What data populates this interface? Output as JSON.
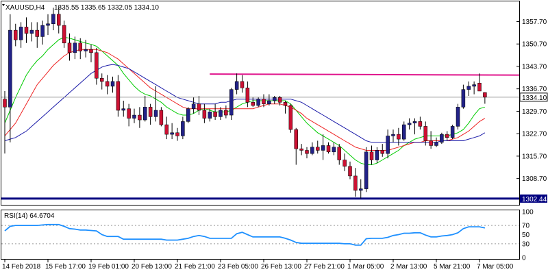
{
  "header": {
    "symbol": "XAUUSD,H4",
    "ohlc": "1335.55 1335.65 1332.05 1334.10"
  },
  "chart_data": [
    {
      "type": "candlestick",
      "title": "XAUUSD,H4",
      "ylim": [
        1300.5,
        1364.0
      ],
      "y_ticks": [
        "1357.70",
        "1350.70",
        "1343.70",
        "1336.70",
        "1329.70",
        "1322.70",
        "1315.70",
        "1308.70"
      ],
      "y_tick_values": [
        1357.7,
        1350.7,
        1343.7,
        1336.7,
        1329.7,
        1322.7,
        1315.7,
        1308.7
      ],
      "x_ticks": [
        "14 Feb 2018",
        "15 Feb 17:00",
        "19 Feb 01:00",
        "20 Feb 13:00",
        "21 Feb 21:00",
        "23 Feb 05:00",
        "26 Feb 13:00",
        "27 Feb 21:00",
        "1 Mar 05:00",
        "2 Mar 13:00",
        "5 Mar 21:00",
        "7 Mar 05:00"
      ],
      "x_tick_positions": [
        0,
        8,
        16,
        24,
        32,
        40,
        48,
        56,
        64,
        72,
        80,
        88
      ],
      "current_price": "1334.10",
      "current_price_value": 1334.1,
      "support_label": "1302.44",
      "support_value": 1302.44,
      "resistance": {
        "from_index": 38,
        "to_index": 91,
        "values": [
          1341.3,
          1341.0
        ]
      },
      "candles": [
        [
          1333.5,
          1336.0,
          1316.5,
          1331.0
        ],
        [
          1331.0,
          1360.0,
          1320.0,
          1355.0
        ],
        [
          1355.0,
          1357.0,
          1350.0,
          1352.0
        ],
        [
          1352.0,
          1357.5,
          1349.5,
          1356.0
        ],
        [
          1356.0,
          1359.0,
          1351.0,
          1354.0
        ],
        [
          1354.0,
          1357.5,
          1351.5,
          1355.0
        ],
        [
          1355.0,
          1357.5,
          1349.5,
          1353.0
        ],
        [
          1353.0,
          1358.0,
          1350.5,
          1356.5
        ],
        [
          1356.5,
          1360.0,
          1353.5,
          1357.0
        ],
        [
          1357.0,
          1362.0,
          1355.0,
          1360.0
        ],
        [
          1360.0,
          1362.5,
          1354.0,
          1356.5
        ],
        [
          1356.5,
          1358.0,
          1349.5,
          1351.0
        ],
        [
          1351.0,
          1354.0,
          1345.5,
          1348.0
        ],
        [
          1348.0,
          1353.0,
          1346.0,
          1351.0
        ],
        [
          1351.0,
          1352.5,
          1346.0,
          1348.5
        ],
        [
          1348.5,
          1352.0,
          1346.5,
          1349.0
        ],
        [
          1349.0,
          1350.5,
          1345.0,
          1348.0
        ],
        [
          1348.0,
          1349.5,
          1338.0,
          1340.0
        ],
        [
          1340.0,
          1341.5,
          1336.5,
          1339.0
        ],
        [
          1339.0,
          1341.0,
          1335.0,
          1337.5
        ],
        [
          1337.5,
          1340.5,
          1335.5,
          1339.0
        ],
        [
          1339.0,
          1341.0,
          1328.0,
          1330.0
        ],
        [
          1330.0,
          1333.0,
          1328.0,
          1330.5
        ],
        [
          1330.5,
          1332.0,
          1325.0,
          1327.5
        ],
        [
          1327.5,
          1330.5,
          1326.0,
          1328.5
        ],
        [
          1328.5,
          1331.0,
          1324.5,
          1327.0
        ],
        [
          1327.0,
          1334.5,
          1326.5,
          1331.0
        ],
        [
          1331.0,
          1332.0,
          1325.5,
          1328.0
        ],
        [
          1328.0,
          1337.5,
          1326.5,
          1330.0
        ],
        [
          1330.0,
          1331.0,
          1325.0,
          1325.5
        ],
        [
          1325.5,
          1328.0,
          1321.0,
          1322.5
        ],
        [
          1322.5,
          1326.0,
          1321.0,
          1323.0
        ],
        [
          1323.0,
          1324.5,
          1320.5,
          1322.0
        ],
        [
          1322.0,
          1328.0,
          1321.0,
          1326.5
        ],
        [
          1326.5,
          1331.0,
          1326.0,
          1330.5
        ],
        [
          1330.5,
          1334.0,
          1329.0,
          1332.0
        ],
        [
          1332.0,
          1334.5,
          1328.5,
          1330.0
        ],
        [
          1330.0,
          1332.0,
          1326.0,
          1327.5
        ],
        [
          1327.5,
          1330.5,
          1326.5,
          1329.5
        ],
        [
          1329.5,
          1332.0,
          1327.0,
          1328.0
        ],
        [
          1328.0,
          1331.0,
          1327.0,
          1330.0
        ],
        [
          1330.0,
          1331.5,
          1327.5,
          1328.5
        ],
        [
          1328.5,
          1337.0,
          1327.0,
          1336.5
        ],
        [
          1336.5,
          1341.5,
          1335.0,
          1339.0
        ],
        [
          1339.0,
          1341.0,
          1335.5,
          1337.0
        ],
        [
          1337.0,
          1339.0,
          1331.0,
          1332.5
        ],
        [
          1332.5,
          1334.0,
          1331.0,
          1331.5
        ],
        [
          1331.5,
          1334.0,
          1331.0,
          1333.5
        ],
        [
          1333.5,
          1335.0,
          1331.0,
          1332.0
        ],
        [
          1332.0,
          1335.0,
          1331.5,
          1333.0
        ],
        [
          1333.0,
          1334.5,
          1332.0,
          1334.0
        ],
        [
          1334.0,
          1334.5,
          1331.5,
          1332.5
        ],
        [
          1332.5,
          1333.0,
          1329.0,
          1331.5
        ],
        [
          1331.5,
          1332.0,
          1323.0,
          1324.0
        ],
        [
          1324.0,
          1324.5,
          1313.0,
          1318.0
        ],
        [
          1318.0,
          1319.5,
          1316.0,
          1317.5
        ],
        [
          1317.5,
          1318.5,
          1315.0,
          1316.5
        ],
        [
          1316.5,
          1320.0,
          1316.0,
          1318.5
        ],
        [
          1318.5,
          1320.5,
          1316.5,
          1317.5
        ],
        [
          1317.5,
          1322.5,
          1314.5,
          1319.0
        ],
        [
          1319.0,
          1320.0,
          1316.5,
          1317.0
        ],
        [
          1317.0,
          1320.0,
          1316.0,
          1318.5
        ],
        [
          1318.5,
          1319.5,
          1313.0,
          1314.5
        ],
        [
          1314.5,
          1316.5,
          1311.0,
          1312.5
        ],
        [
          1312.5,
          1314.0,
          1308.5,
          1309.5
        ],
        [
          1309.5,
          1312.0,
          1303.0,
          1305.0
        ],
        [
          1305.0,
          1308.5,
          1302.5,
          1305.5
        ],
        [
          1305.5,
          1318.5,
          1304.5,
          1317.0
        ],
        [
          1317.0,
          1319.0,
          1313.0,
          1314.5
        ],
        [
          1314.5,
          1318.5,
          1313.5,
          1317.5
        ],
        [
          1317.5,
          1319.5,
          1315.5,
          1316.5
        ],
        [
          1316.5,
          1324.0,
          1315.0,
          1322.0
        ],
        [
          1322.0,
          1324.0,
          1320.0,
          1322.5
        ],
        [
          1322.5,
          1324.5,
          1319.0,
          1321.0
        ],
        [
          1321.0,
          1326.5,
          1320.5,
          1325.5
        ],
        [
          1325.5,
          1327.5,
          1324.0,
          1326.0
        ],
        [
          1326.0,
          1327.5,
          1322.5,
          1326.5
        ],
        [
          1326.5,
          1328.0,
          1324.0,
          1325.0
        ],
        [
          1325.0,
          1326.5,
          1319.0,
          1320.5
        ],
        [
          1320.5,
          1323.5,
          1318.0,
          1319.0
        ],
        [
          1319.0,
          1321.5,
          1318.5,
          1320.0
        ],
        [
          1320.0,
          1323.0,
          1319.5,
          1322.5
        ],
        [
          1322.5,
          1323.5,
          1320.5,
          1321.5
        ],
        [
          1321.5,
          1325.5,
          1321.0,
          1325.0
        ],
        [
          1325.0,
          1332.0,
          1324.0,
          1331.0
        ],
        [
          1331.0,
          1338.0,
          1330.5,
          1336.5
        ],
        [
          1336.5,
          1339.0,
          1334.5,
          1337.5
        ],
        [
          1337.5,
          1339.0,
          1335.0,
          1338.0
        ],
        [
          1338.5,
          1341.5,
          1336.0,
          1336.0
        ],
        [
          1335.55,
          1335.65,
          1332.05,
          1334.1
        ]
      ],
      "moving_averages": [
        {
          "color": "#00cc00",
          "values": [
            1326.0,
            1330.0,
            1334.0,
            1337.5,
            1341.0,
            1343.5,
            1345.5,
            1347.0,
            1349.0,
            1350.5,
            1352.0,
            1352.8,
            1352.5,
            1352.0,
            1351.5,
            1351.0,
            1350.6,
            1350.0,
            1348.5,
            1347.0,
            1345.5,
            1344.0,
            1341.5,
            1339.5,
            1337.5,
            1336.0,
            1335.0,
            1334.5,
            1333.5,
            1332.5,
            1331.0,
            1330.0,
            1329.0,
            1328.5,
            1328.5,
            1329.0,
            1330.0,
            1330.5,
            1330.0,
            1329.5,
            1329.5,
            1329.5,
            1330.0,
            1331.0,
            1332.0,
            1332.5,
            1333.0,
            1333.0,
            1333.0,
            1333.0,
            1333.0,
            1333.0,
            1333.0,
            1332.0,
            1330.0,
            1328.0,
            1326.0,
            1324.5,
            1323.0,
            1322.0,
            1321.0,
            1320.0,
            1319.0,
            1317.5,
            1316.0,
            1314.5,
            1313.5,
            1313.0,
            1313.0,
            1313.5,
            1314.5,
            1315.5,
            1316.5,
            1317.5,
            1319.0,
            1320.0,
            1321.0,
            1321.5,
            1322.0,
            1322.0,
            1322.0,
            1322.0,
            1322.0,
            1322.5,
            1323.0,
            1324.0,
            1326.0,
            1328.5,
            1330.5,
            1331.0
          ]
        },
        {
          "color": "#ee2222",
          "values": [
            1322.0,
            1324.0,
            1326.0,
            1329.0,
            1332.0,
            1335.0,
            1338.0,
            1340.0,
            1342.0,
            1344.0,
            1345.5,
            1347.0,
            1348.0,
            1348.5,
            1349.0,
            1349.0,
            1349.0,
            1349.0,
            1348.5,
            1348.0,
            1347.0,
            1346.0,
            1344.5,
            1343.0,
            1341.5,
            1340.0,
            1338.5,
            1337.0,
            1336.0,
            1335.0,
            1334.0,
            1333.0,
            1332.0,
            1331.0,
            1330.5,
            1330.5,
            1330.5,
            1330.5,
            1330.5,
            1330.5,
            1330.5,
            1330.5,
            1330.5,
            1330.5,
            1330.5,
            1330.5,
            1330.5,
            1331.0,
            1331.5,
            1332.0,
            1332.0,
            1332.0,
            1331.5,
            1331.0,
            1330.0,
            1329.0,
            1327.5,
            1326.5,
            1325.5,
            1324.5,
            1323.5,
            1322.5,
            1321.5,
            1320.5,
            1319.5,
            1318.5,
            1318.0,
            1317.5,
            1317.5,
            1317.5,
            1317.5,
            1317.5,
            1318.0,
            1318.5,
            1319.0,
            1319.5,
            1320.0,
            1320.0,
            1320.5,
            1320.5,
            1320.5,
            1320.5,
            1320.5,
            1321.0,
            1321.5,
            1322.5,
            1323.5,
            1325.0,
            1326.5,
            1327.5
          ]
        },
        {
          "color": "#1a1aa8",
          "values": [
            1320.5,
            1321.0,
            1321.5,
            1322.5,
            1323.5,
            1325.0,
            1326.5,
            1328.0,
            1329.5,
            1331.0,
            1332.5,
            1334.0,
            1335.5,
            1337.0,
            1338.5,
            1340.0,
            1341.5,
            1342.5,
            1343.5,
            1344.0,
            1344.3,
            1344.0,
            1343.5,
            1343.0,
            1342.0,
            1341.0,
            1340.0,
            1339.0,
            1338.0,
            1337.0,
            1336.0,
            1335.0,
            1334.0,
            1333.5,
            1333.0,
            1332.5,
            1332.0,
            1332.0,
            1332.0,
            1332.0,
            1332.5,
            1332.5,
            1333.0,
            1333.5,
            1333.5,
            1333.5,
            1333.5,
            1333.5,
            1333.5,
            1333.5,
            1333.5,
            1333.5,
            1333.5,
            1333.5,
            1333.0,
            1332.5,
            1331.5,
            1330.5,
            1329.5,
            1328.5,
            1327.5,
            1326.5,
            1325.5,
            1324.5,
            1323.5,
            1322.5,
            1321.5,
            1320.5,
            1320.0,
            1320.0,
            1320.0,
            1320.0,
            1320.0,
            1320.0,
            1320.0,
            1320.0,
            1320.0,
            1320.0,
            1320.0,
            1320.0,
            1320.0,
            1320.5,
            1320.5,
            1320.5,
            1320.5,
            1320.5,
            1321.0,
            1321.5,
            1322.0,
            1323.0
          ]
        }
      ]
    },
    {
      "type": "line",
      "title": "RSI(14) 64.6704",
      "ylim": [
        0,
        100
      ],
      "y_ticks": [
        "100",
        "70",
        "50",
        "30",
        "0"
      ],
      "y_tick_values": [
        100,
        70,
        50,
        30,
        0
      ],
      "levels": [
        70,
        30
      ],
      "values": [
        58,
        68,
        70,
        70,
        70,
        70,
        70,
        71,
        72,
        72,
        72,
        68,
        63,
        62,
        60,
        60,
        59,
        58,
        50,
        46,
        46,
        46,
        40,
        40,
        40,
        40,
        40,
        40,
        40,
        40,
        38,
        38,
        38,
        40,
        42,
        46,
        48,
        46,
        42,
        42,
        42,
        42,
        42,
        52,
        55,
        50,
        45,
        45,
        45,
        45,
        45,
        45,
        42,
        38,
        33,
        31,
        31,
        31,
        31,
        31,
        31,
        31,
        31,
        30,
        30,
        27,
        27,
        41,
        42,
        42,
        42,
        44,
        48,
        50,
        53,
        53,
        54,
        54,
        49,
        45,
        45,
        47,
        48,
        50,
        54,
        63,
        67,
        67,
        67,
        64.67
      ]
    }
  ]
}
